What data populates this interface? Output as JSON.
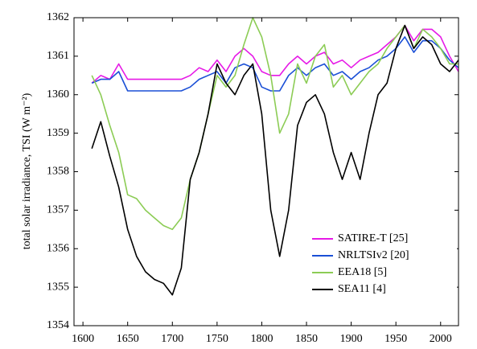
{
  "chart_data": {
    "type": "line",
    "y_label": "total solar irradiance, TSI (W m⁻²)",
    "x": [
      1610,
      1620,
      1630,
      1640,
      1650,
      1660,
      1670,
      1680,
      1690,
      1700,
      1710,
      1720,
      1730,
      1740,
      1750,
      1760,
      1770,
      1780,
      1790,
      1800,
      1810,
      1820,
      1830,
      1840,
      1850,
      1860,
      1870,
      1880,
      1890,
      1900,
      1910,
      1920,
      1930,
      1940,
      1950,
      1960,
      1970,
      1980,
      1990,
      2000,
      2010,
      2020
    ],
    "series": [
      {
        "name": "SATIRE-T [25]",
        "color": "#e619e6",
        "values": [
          1360.3,
          1360.5,
          1360.4,
          1360.8,
          1360.4,
          1360.4,
          1360.4,
          1360.4,
          1360.4,
          1360.4,
          1360.4,
          1360.5,
          1360.7,
          1360.6,
          1360.9,
          1360.6,
          1361.0,
          1361.2,
          1361.0,
          1360.6,
          1360.5,
          1360.5,
          1360.8,
          1361.0,
          1360.8,
          1361.0,
          1361.1,
          1360.8,
          1360.9,
          1360.7,
          1360.9,
          1361.0,
          1361.1,
          1361.3,
          1361.5,
          1361.8,
          1361.4,
          1361.7,
          1361.7,
          1361.5,
          1361.0,
          1360.6
        ]
      },
      {
        "name": "NRLTSIv2 [20]",
        "color": "#1a4fd6",
        "values": [
          1360.3,
          1360.4,
          1360.4,
          1360.6,
          1360.1,
          1360.1,
          1360.1,
          1360.1,
          1360.1,
          1360.1,
          1360.1,
          1360.2,
          1360.4,
          1360.5,
          1360.6,
          1360.3,
          1360.7,
          1360.8,
          1360.7,
          1360.2,
          1360.1,
          1360.1,
          1360.5,
          1360.7,
          1360.5,
          1360.7,
          1360.8,
          1360.5,
          1360.6,
          1360.4,
          1360.6,
          1360.7,
          1360.9,
          1361.0,
          1361.2,
          1361.5,
          1361.1,
          1361.4,
          1361.4,
          1361.2,
          1360.9,
          1360.7
        ]
      },
      {
        "name": "EEA18 [5]",
        "color": "#8ccc55",
        "values": [
          1360.5,
          1360.0,
          1359.2,
          1358.5,
          1357.4,
          1357.3,
          1357.0,
          1356.8,
          1356.6,
          1356.5,
          1356.8,
          1357.8,
          1358.5,
          1359.5,
          1360.5,
          1360.2,
          1360.5,
          1361.3,
          1362.0,
          1361.5,
          1360.5,
          1359.0,
          1359.5,
          1360.8,
          1360.3,
          1361.0,
          1361.3,
          1360.2,
          1360.5,
          1360.0,
          1360.3,
          1360.6,
          1360.8,
          1361.2,
          1361.5,
          1361.8,
          1361.2,
          1361.7,
          1361.5,
          1361.2,
          1360.8,
          1360.8
        ]
      },
      {
        "name": "SEA11 [4]",
        "color": "#000000",
        "values": [
          1358.6,
          1359.3,
          1358.4,
          1357.6,
          1356.5,
          1355.8,
          1355.4,
          1355.2,
          1355.1,
          1354.8,
          1355.5,
          1357.8,
          1358.5,
          1359.5,
          1360.8,
          1360.3,
          1360.0,
          1360.5,
          1360.8,
          1359.5,
          1357.0,
          1355.8,
          1357.0,
          1359.2,
          1359.8,
          1360.0,
          1359.5,
          1358.5,
          1357.8,
          1358.5,
          1357.8,
          1359.0,
          1360.0,
          1360.3,
          1361.2,
          1361.8,
          1361.2,
          1361.5,
          1361.3,
          1360.8,
          1360.6,
          1360.9
        ]
      }
    ],
    "xlim": [
      1590,
      2020
    ],
    "xticks": [
      1600,
      1650,
      1700,
      1750,
      1800,
      1850,
      1900,
      1950,
      2000
    ],
    "ylim": [
      1354,
      1362
    ],
    "yticks": [
      1354,
      1355,
      1356,
      1357,
      1358,
      1359,
      1360,
      1361,
      1362
    ],
    "legend": "lower right"
  }
}
